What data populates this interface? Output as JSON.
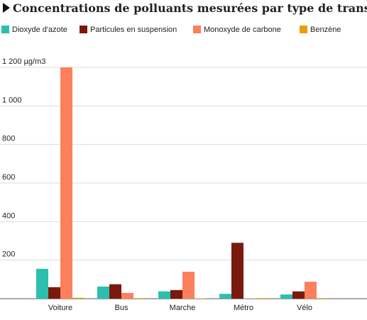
{
  "chart_data": {
    "type": "bar",
    "title": "Concentrations de polluants mesurées par type de transport",
    "categories": [
      "Voiture",
      "Bus",
      "Marche",
      "Métro",
      "Vélo"
    ],
    "series": [
      {
        "name": "Dioxyde d'azote",
        "color": "#2bbfae",
        "values": [
          155,
          63,
          38,
          25,
          22
        ]
      },
      {
        "name": "Particules en suspension",
        "color": "#7a1a0e",
        "values": [
          60,
          75,
          45,
          290,
          38
        ]
      },
      {
        "name": "Monoxyde de carbone",
        "color": "#fd7f5b",
        "values": [
          1200,
          30,
          140,
          2,
          88
        ]
      },
      {
        "name": "Benzène",
        "color": "#e8a000",
        "values": [
          5,
          3,
          2,
          3,
          3
        ]
      }
    ],
    "ylim": [
      0,
      1200
    ],
    "yticks": [
      200,
      400,
      600,
      800,
      {
        "value": 1000,
        "label": "1 000"
      },
      {
        "value": 1200,
        "label": "1 200 µg/m3"
      }
    ],
    "grid": true
  }
}
